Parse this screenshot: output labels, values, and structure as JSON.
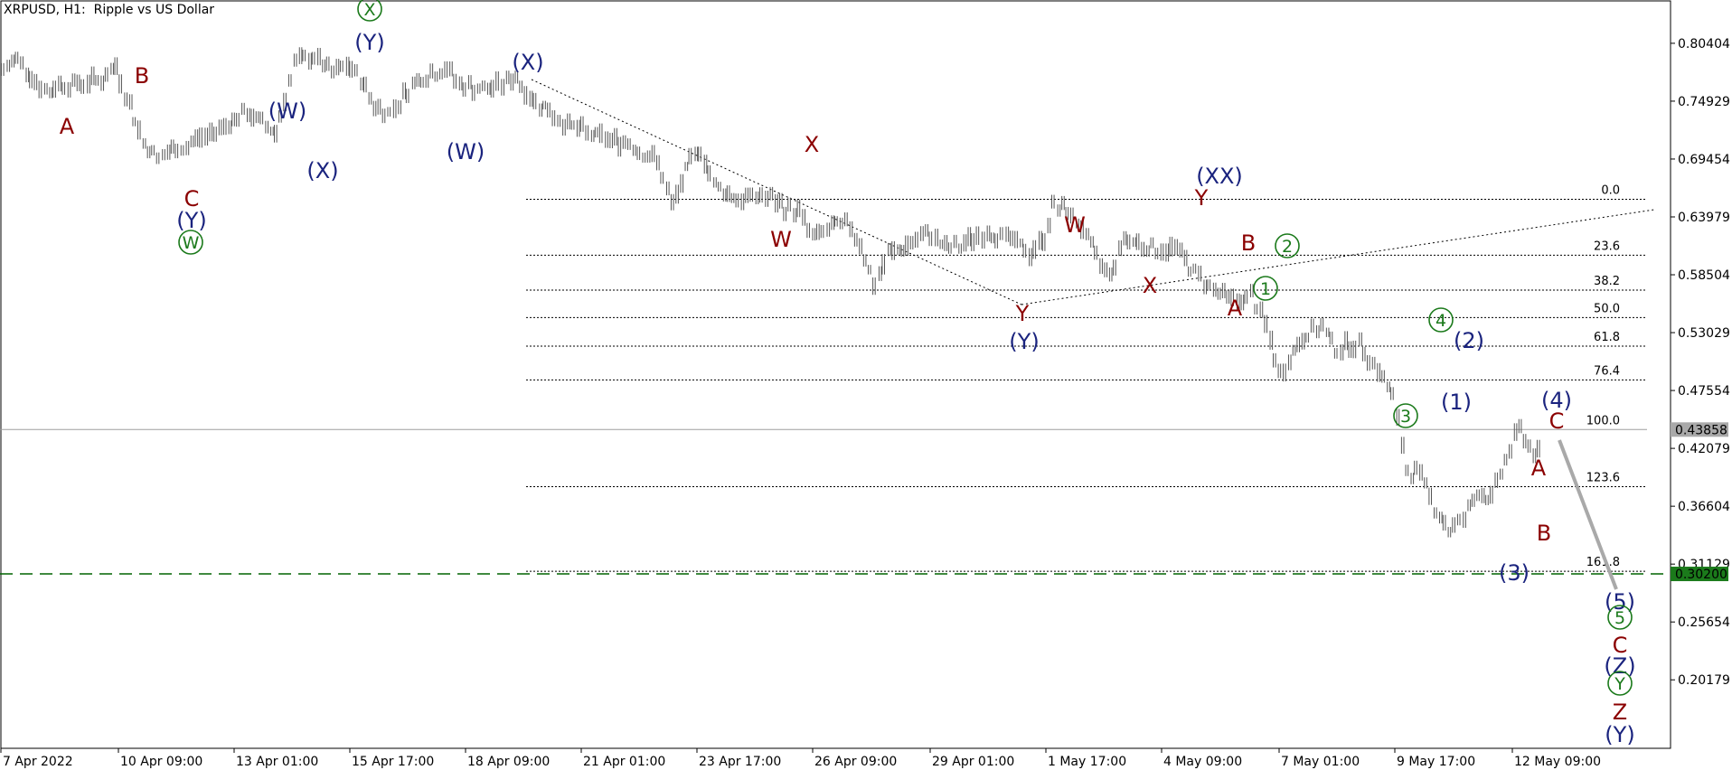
{
  "header": {
    "title": "XRPUSD, H1:  Ripple vs US Dollar"
  },
  "colors": {
    "price": "#555555",
    "wave_red": "#8b0000",
    "wave_blue": "#1a237e",
    "wave_green": "#1b7a1b",
    "fib_line": "#000000",
    "target_line": "#006400",
    "price_badge_bg": "#a9a9a9",
    "target_badge_bg": "#1b7a1b"
  },
  "chart_data": {
    "type": "line",
    "symbol": "XRPUSD",
    "timeframe": "H1",
    "y_ticks": [
      "0.80404",
      "0.74929",
      "0.69454",
      "0.63979",
      "0.58504",
      "0.53029",
      "0.47554",
      "0.42079",
      "0.36604",
      "0.31129",
      "0.25654",
      "0.20179"
    ],
    "y_tick_values": [
      0.80404,
      0.74929,
      0.69454,
      0.63979,
      0.58504,
      0.53029,
      0.47554,
      0.42079,
      0.36604,
      0.31129,
      0.25654,
      0.20179
    ],
    "ylim": [
      0.137,
      0.845
    ],
    "x_ticks": [
      "7 Apr 2022",
      "10 Apr 09:00",
      "13 Apr 01:00",
      "15 Apr 17:00",
      "18 Apr 09:00",
      "21 Apr 01:00",
      "23 Apr 17:00",
      "26 Apr 09:00",
      "29 Apr 01:00",
      "1 May 17:00",
      "4 May 09:00",
      "7 May 01:00",
      "9 May 17:00",
      "12 May 09:00"
    ],
    "current_price": {
      "label": "0.43858",
      "value": 0.43858
    },
    "target_price": {
      "label": "0.30200",
      "value": 0.302
    },
    "price_series": {
      "x_index": [
        0,
        3,
        6,
        8,
        10,
        12,
        15,
        18,
        21,
        24,
        27,
        30,
        33,
        36,
        39,
        41,
        43,
        46,
        49,
        52,
        55,
        58,
        62,
        66,
        70,
        73,
        76,
        79,
        82,
        85,
        88,
        91,
        94,
        97,
        100,
        103,
        106,
        109,
        112,
        115,
        118,
        121,
        124,
        127,
        130,
        133,
        136,
        139,
        142,
        145,
        148,
        151,
        154,
        157,
        160,
        163,
        166,
        169,
        172,
        175,
        178,
        180,
        182,
        185,
        188,
        191,
        194,
        197,
        200,
        203,
        206,
        209,
        212,
        215,
        218,
        221,
        223,
        226,
        229,
        232,
        235,
        238,
        241,
        244,
        247,
        249,
        251,
        253,
        256,
        259,
        262,
        265,
        268,
        271,
        274,
        277,
        280,
        283,
        286,
        289,
        292,
        295,
        298,
        301,
        304,
        307,
        310,
        313,
        316,
        319,
        322,
        325,
        327
      ],
      "close": [
        0.778,
        0.79,
        0.775,
        0.762,
        0.758,
        0.766,
        0.765,
        0.768,
        0.77,
        0.782,
        0.745,
        0.71,
        0.695,
        0.703,
        0.706,
        0.714,
        0.716,
        0.724,
        0.732,
        0.738,
        0.728,
        0.72,
        0.785,
        0.792,
        0.775,
        0.783,
        0.77,
        0.745,
        0.738,
        0.755,
        0.77,
        0.775,
        0.78,
        0.765,
        0.762,
        0.76,
        0.766,
        0.772,
        0.752,
        0.744,
        0.732,
        0.725,
        0.719,
        0.715,
        0.712,
        0.71,
        0.7,
        0.692,
        0.65,
        0.683,
        0.705,
        0.67,
        0.662,
        0.655,
        0.66,
        0.657,
        0.648,
        0.645,
        0.62,
        0.628,
        0.632,
        0.63,
        0.615,
        0.575,
        0.605,
        0.61,
        0.618,
        0.624,
        0.61,
        0.612,
        0.62,
        0.625,
        0.622,
        0.615,
        0.605,
        0.62,
        0.65,
        0.645,
        0.63,
        0.6,
        0.585,
        0.62,
        0.615,
        0.61,
        0.608,
        0.612,
        0.598,
        0.587,
        0.575,
        0.565,
        0.56,
        0.565,
        0.538,
        0.49,
        0.513,
        0.53,
        0.535,
        0.515,
        0.52,
        0.515,
        0.495,
        0.47,
        0.4,
        0.395,
        0.365,
        0.343,
        0.355,
        0.38,
        0.373,
        0.41,
        0.44,
        0.415,
        0.42
      ]
    },
    "fib_levels": [
      {
        "label": "0.0",
        "value": 0.6565
      },
      {
        "label": "23.6",
        "value": 0.6035
      },
      {
        "label": "38.2",
        "value": 0.5705
      },
      {
        "label": "50.0",
        "value": 0.5445
      },
      {
        "label": "61.8",
        "value": 0.5175
      },
      {
        "label": "76.4",
        "value": 0.4855
      },
      {
        "label": "100.0",
        "value": 0.43858
      },
      {
        "label": "123.6",
        "value": 0.3845
      },
      {
        "label": "161.8",
        "value": 0.3045
      }
    ],
    "wave_labels": [
      {
        "text": "A",
        "color": "red"
      },
      {
        "text": "B",
        "color": "red"
      },
      {
        "text": "C",
        "color": "red"
      },
      {
        "text": "(Y)",
        "color": "blue"
      },
      {
        "text": "W",
        "color": "green",
        "circled": true
      },
      {
        "text": "(W)",
        "color": "blue"
      },
      {
        "text": "(X)",
        "color": "blue"
      },
      {
        "text": "X",
        "color": "green",
        "circled": true
      },
      {
        "text": "(Y)",
        "color": "blue"
      },
      {
        "text": "(W)",
        "color": "blue"
      },
      {
        "text": "(X)",
        "color": "blue"
      },
      {
        "text": "X",
        "color": "red"
      },
      {
        "text": "W",
        "color": "red"
      },
      {
        "text": "Y",
        "color": "red"
      },
      {
        "text": "(Y)",
        "color": "blue"
      },
      {
        "text": "W",
        "color": "red"
      },
      {
        "text": "X",
        "color": "red"
      },
      {
        "text": "(XX)",
        "color": "blue"
      },
      {
        "text": "Y",
        "color": "red"
      },
      {
        "text": "B",
        "color": "red"
      },
      {
        "text": "A",
        "color": "red"
      },
      {
        "text": "2",
        "color": "green",
        "circled": true
      },
      {
        "text": "1",
        "color": "green",
        "circled": true
      },
      {
        "text": "4",
        "color": "green",
        "circled": true
      },
      {
        "text": "(2)",
        "color": "blue"
      },
      {
        "text": "3",
        "color": "green",
        "circled": true
      },
      {
        "text": "(1)",
        "color": "blue"
      },
      {
        "text": "(4)",
        "color": "blue"
      },
      {
        "text": "C",
        "color": "red"
      },
      {
        "text": "A",
        "color": "red"
      },
      {
        "text": "B",
        "color": "red"
      },
      {
        "text": "(3)",
        "color": "blue"
      },
      {
        "text": "(5)",
        "color": "blue"
      },
      {
        "text": "5",
        "color": "green",
        "circled": true
      },
      {
        "text": "C",
        "color": "red"
      },
      {
        "text": "(Z)",
        "color": "blue"
      },
      {
        "text": "Y",
        "color": "green",
        "circled": true
      },
      {
        "text": "Z",
        "color": "red"
      },
      {
        "text": "(Y)",
        "color": "blue"
      }
    ]
  }
}
